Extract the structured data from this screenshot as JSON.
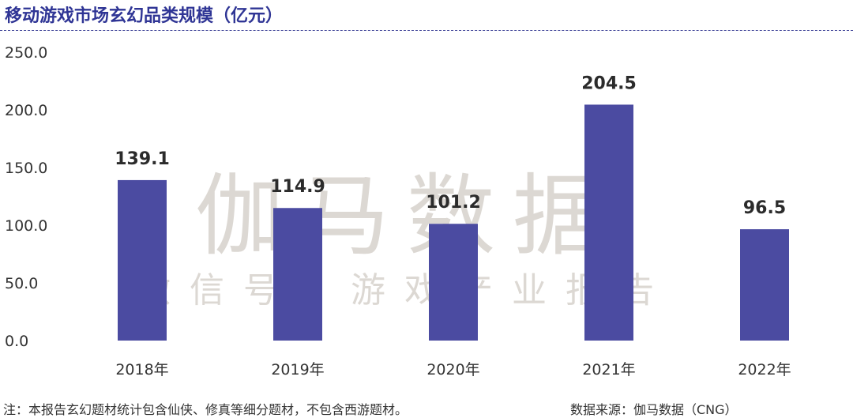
{
  "title": "移动游戏市场玄幻品类规模（亿元）",
  "watermark": {
    "main": "伽马数据",
    "sub": "微信号：游戏产业报告"
  },
  "colors": {
    "bar": "#4b4ba1",
    "title": "#2f3595",
    "watermark": "#dcd8d3"
  },
  "chart_data": {
    "type": "bar",
    "title": "移动游戏市场玄幻品类规模（亿元）",
    "xlabel": "",
    "ylabel": "",
    "categories": [
      "2018年",
      "2019年",
      "2020年",
      "2021年",
      "2022年"
    ],
    "values": [
      139.1,
      114.9,
      101.2,
      204.5,
      96.5
    ],
    "value_labels": [
      "139.1",
      "114.9",
      "101.2",
      "204.5",
      "96.5"
    ],
    "ylim": [
      0,
      250
    ],
    "yticks": [
      "0.0",
      "50.0",
      "100.0",
      "150.0",
      "200.0",
      "250.0"
    ],
    "grid": false,
    "legend": "none"
  },
  "footer": {
    "note": "注：本报告玄幻题材统计包含仙侠、修真等细分题材，不包含西游题材。",
    "source": "数据来源：伽马数据（CNG）"
  }
}
